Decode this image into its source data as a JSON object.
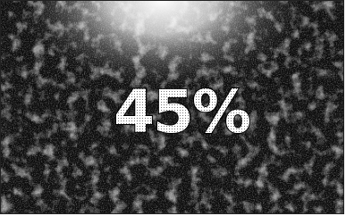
{
  "headline": "45%"
}
